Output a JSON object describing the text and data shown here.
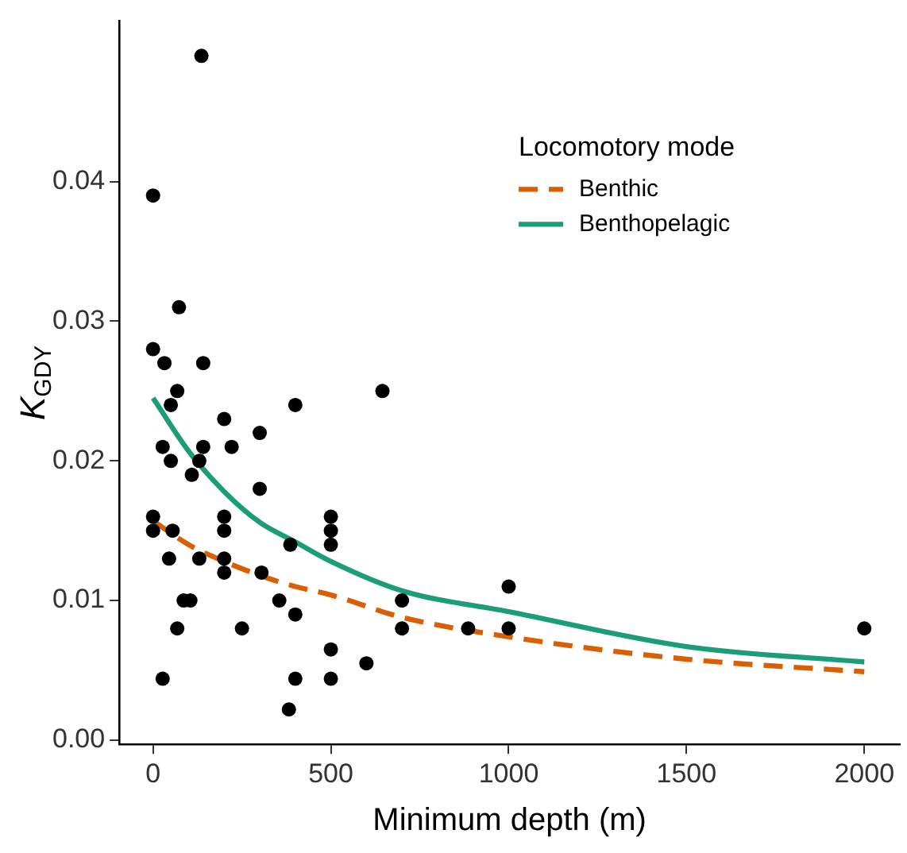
{
  "chart_data": {
    "type": "scatter",
    "xlabel": "Minimum depth (m)",
    "ylabel": "K$_{GDY}$",
    "legend_title": "Locomotory mode",
    "legend": "top right",
    "grid": false,
    "xlim": [
      -95,
      2100
    ],
    "xticks": [
      0,
      500,
      1000,
      1500,
      2000
    ],
    "ylim": [
      -0.0003,
      0.0515
    ],
    "yticks": [
      {
        "value": 0,
        "label": "0.00"
      },
      {
        "value": 0.01,
        "label": "0.01"
      },
      {
        "value": 0.02,
        "label": "0.02"
      },
      {
        "value": 0.03,
        "label": "0.03"
      },
      {
        "value": 0.04,
        "label": "0.04"
      }
    ],
    "series": [
      {
        "type": "scatter",
        "color": "#000000",
        "marker": "circle",
        "x": [
          136,
          0,
          73,
          0,
          32,
          141,
          68,
          50,
          645,
          400,
          200,
          300,
          27,
          141,
          221,
          50,
          130,
          109,
          300,
          0,
          200,
          500,
          0,
          55,
          200,
          500,
          386,
          500,
          45,
          130,
          200,
          200,
          305,
          86,
          105,
          355,
          700,
          400,
          68,
          250,
          700,
          500,
          600,
          27,
          400,
          500,
          382,
          1000,
          886,
          1000,
          2000
        ],
        "values": [
          0.049,
          0.039,
          0.031,
          0.028,
          0.027,
          0.027,
          0.025,
          0.024,
          0.025,
          0.024,
          0.023,
          0.022,
          0.021,
          0.021,
          0.021,
          0.02,
          0.02,
          0.019,
          0.018,
          0.016,
          0.016,
          0.016,
          0.015,
          0.015,
          0.015,
          0.015,
          0.014,
          0.014,
          0.013,
          0.013,
          0.013,
          0.012,
          0.012,
          0.01,
          0.01,
          0.01,
          0.01,
          0.009,
          0.008,
          0.008,
          0.008,
          0.0065,
          0.0055,
          0.0044,
          0.0044,
          0.0044,
          0.0022,
          0.011,
          0.008,
          0.008,
          0.008
        ]
      },
      {
        "type": "line",
        "name": "Benthic",
        "color": "#d95f02",
        "line_style": "dashed",
        "marker": "none",
        "x": [
          0,
          100,
          200,
          300,
          400,
          500,
          700,
          1000,
          1500,
          2000
        ],
        "values": [
          0.0157,
          0.014,
          0.0128,
          0.0118,
          0.011,
          0.0104,
          0.0088,
          0.0074,
          0.0058,
          0.0049
        ]
      },
      {
        "type": "line",
        "name": "Benthopelagic",
        "color": "#1b9e77",
        "line_style": "solid",
        "marker": "none",
        "x": [
          0,
          100,
          200,
          300,
          400,
          500,
          700,
          1000,
          1500,
          2000
        ],
        "values": [
          0.0245,
          0.0207,
          0.0178,
          0.0156,
          0.0142,
          0.0128,
          0.0107,
          0.0092,
          0.0067,
          0.0056
        ]
      }
    ]
  }
}
